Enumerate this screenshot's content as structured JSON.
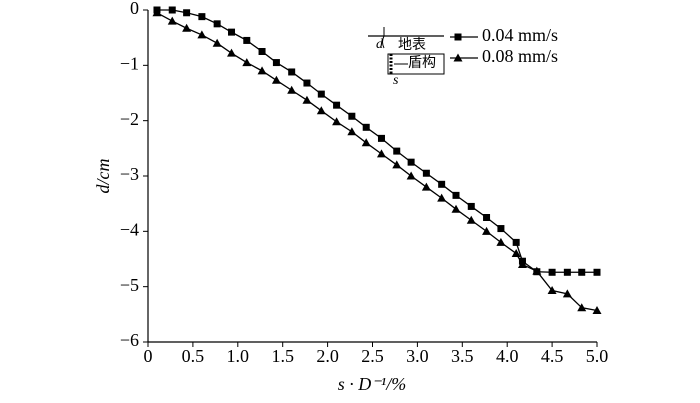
{
  "chart_data": {
    "type": "line",
    "xlabel": "s · D⁻¹/%",
    "ylabel": "d/cm",
    "x": [
      0.1,
      0.27,
      0.43,
      0.6,
      0.77,
      0.93,
      1.1,
      1.27,
      1.43,
      1.6,
      1.77,
      1.93,
      2.1,
      2.27,
      2.43,
      2.6,
      2.77,
      2.93,
      3.1,
      3.27,
      3.43,
      3.6,
      3.77,
      3.93,
      4.1,
      4.17,
      4.33,
      4.5,
      4.67,
      4.83,
      5.0
    ],
    "series": [
      {
        "name": "0.04 mm/s",
        "color": "#000000",
        "marker": "square",
        "values": [
          0,
          0,
          -0.05,
          -0.12,
          -0.25,
          -0.4,
          -0.55,
          -0.75,
          -0.95,
          -1.12,
          -1.32,
          -1.52,
          -1.72,
          -1.92,
          -2.12,
          -2.32,
          -2.55,
          -2.75,
          -2.95,
          -3.15,
          -3.35,
          -3.55,
          -3.75,
          -3.95,
          -4.2,
          -4.54,
          -4.73,
          -4.74,
          -4.74,
          -4.74,
          -4.74
        ]
      },
      {
        "name": "0.08 mm/s",
        "color": "#000000",
        "marker": "triangle",
        "values": [
          -0.05,
          -0.2,
          -0.33,
          -0.45,
          -0.6,
          -0.78,
          -0.95,
          -1.1,
          -1.27,
          -1.45,
          -1.63,
          -1.82,
          -2.02,
          -2.2,
          -2.4,
          -2.6,
          -2.8,
          -3.0,
          -3.2,
          -3.4,
          -3.6,
          -3.8,
          -4.0,
          -4.2,
          -4.4,
          -4.6,
          -4.72,
          -5.07,
          -5.13,
          -5.38,
          -5.43
        ]
      }
    ],
    "xlim": [
      0,
      5
    ],
    "xticks": [
      0,
      0.5,
      {
        "value": 1,
        "label": "1.0"
      },
      1.5,
      {
        "value": 2,
        "label": "2.0"
      },
      2.5,
      {
        "value": 3,
        "label": "3.0"
      },
      3.5,
      {
        "value": 4,
        "label": "4.0"
      },
      4.5,
      {
        "value": 5,
        "label": "5.0"
      }
    ],
    "ylim": [
      -6,
      0
    ],
    "yticks": [
      0,
      {
        "value": -1,
        "label": "−1"
      },
      {
        "value": -2,
        "label": "−2"
      },
      {
        "value": -3,
        "label": "−3"
      },
      {
        "value": -4,
        "label": "−4"
      },
      {
        "value": -5,
        "label": "−5"
      },
      {
        "value": -6,
        "label": "−6"
      }
    ],
    "grid": false,
    "legend": "upper right",
    "inset": {
      "depth_label": "d",
      "surface_label": "地表",
      "shield_label": "盾构",
      "distance_label": "s"
    }
  }
}
